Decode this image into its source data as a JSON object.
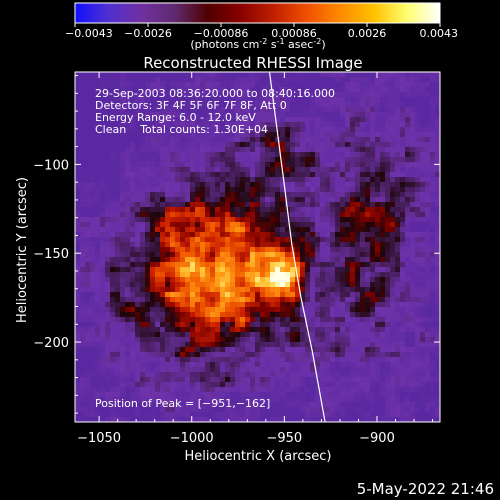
{
  "colorbar": {
    "ticks": [
      "-0.0043",
      "-0.0026",
      "-0.00086",
      "0.00086",
      "0.0026",
      "0.0043"
    ],
    "units_label": "(photons cm",
    "units_exp1": "-2",
    "units_mid": " s",
    "units_exp2": "-1",
    "units_mid2": " asec",
    "units_exp3": "-2",
    "units_end": ")",
    "colors": [
      "#1010ff",
      "#5030d0",
      "#7030a0",
      "#602a70",
      "#500000",
      "#8a0000",
      "#c02000",
      "#f05000",
      "#ff8a00",
      "#ffc000",
      "#ffff70",
      "#ffffff"
    ]
  },
  "chart_data": {
    "type": "heatmap",
    "title": "Reconstructed RHESSI Image",
    "xlabel": "Heliocentric X (arcsec)",
    "ylabel": "Heliocentric Y (arcsec)",
    "xlim": [
      -1063,
      -866
    ],
    "ylim": [
      -245,
      -48
    ],
    "xticks": [
      -1050,
      -1000,
      -950,
      -900
    ],
    "xtick_labels": [
      "−1050",
      "−1000",
      "−950",
      "−900"
    ],
    "yticks": [
      -100,
      -150,
      -200
    ],
    "ytick_labels": [
      "−100",
      "−150",
      "−200"
    ],
    "value_range": [
      -0.0043,
      0.0043
    ],
    "peak": [
      -951,
      -162
    ],
    "limb_curve": [
      [
        -958,
        -48
      ],
      [
        -954,
        -80
      ],
      [
        -950,
        -112
      ],
      [
        -946,
        -145
      ],
      [
        -941,
        -175
      ],
      [
        -935,
        -205
      ],
      [
        -928,
        -245
      ]
    ],
    "info_lines": [
      "29-Sep-2003 08:36:20.000 to 08:40:16.000",
      "Detectors: 3F 4F 5F 6F 7F 8F, Att 0",
      "Energy Range: 6.0 - 12.0 keV",
      "Clean    Total counts: 1.30E+04"
    ],
    "peak_label": "Position of Peak = [−951,−162]"
  },
  "footer": {
    "timestamp": "5-May-2022 21:46"
  }
}
